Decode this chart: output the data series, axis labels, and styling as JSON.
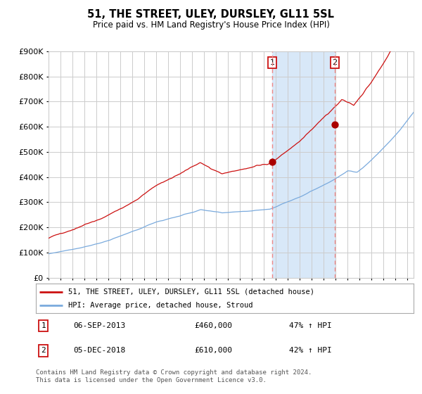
{
  "title": "51, THE STREET, ULEY, DURSLEY, GL11 5SL",
  "subtitle": "Price paid vs. HM Land Registry's House Price Index (HPI)",
  "legend_line1": "51, THE STREET, ULEY, DURSLEY, GL11 5SL (detached house)",
  "legend_line2": "HPI: Average price, detached house, Stroud",
  "annotation1_label": "1",
  "annotation1_date": "06-SEP-2013",
  "annotation1_price": "£460,000",
  "annotation1_hpi": "47% ↑ HPI",
  "annotation2_label": "2",
  "annotation2_date": "05-DEC-2018",
  "annotation2_price": "£610,000",
  "annotation2_hpi": "42% ↑ HPI",
  "footer": "Contains HM Land Registry data © Crown copyright and database right 2024.\nThis data is licensed under the Open Government Licence v3.0.",
  "hpi_color": "#7aaadd",
  "price_color": "#cc1111",
  "dot_color": "#aa0000",
  "shade_color": "#d8e8f8",
  "vline_color": "#ee8888",
  "annot_box_color": "#cc1111",
  "grid_color": "#cccccc",
  "bg_color": "#ffffff",
  "ylim": [
    0,
    900000
  ],
  "xlim_start": 1995.0,
  "xlim_end": 2025.5,
  "sale1_x": 2013.69,
  "sale1_y": 460000,
  "sale2_x": 2018.92,
  "sale2_y": 610000
}
